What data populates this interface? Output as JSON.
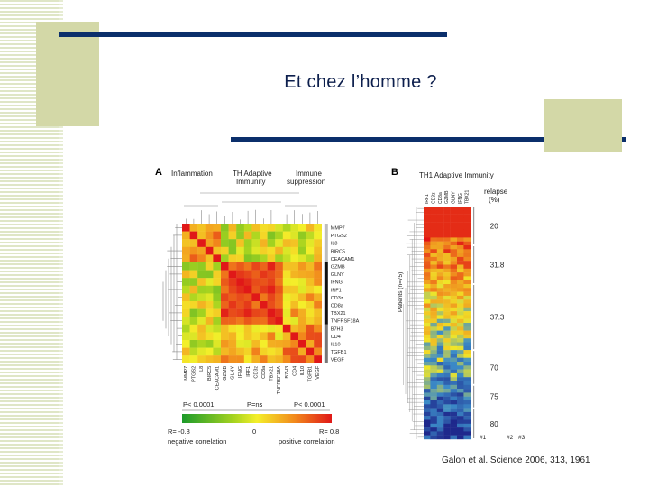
{
  "slide": {
    "title": "Et chez l’homme ?",
    "citation": "Galon et al. Science 2006, 313, 1961"
  },
  "figure_a": {
    "panel_label": "A",
    "groups": [
      "Inflammation",
      "TH Adaptive",
      "Immunity",
      "Immune",
      "suppression"
    ],
    "genes": [
      "MMP7",
      "PTGS2",
      "IL8",
      "BIRC5",
      "CEACAM1",
      "GZMB",
      "GLNY",
      "IFNG",
      "IRF1",
      "CD3z",
      "CD8a",
      "TBX21",
      "TNFRSF18A",
      "B7H3",
      "CD4",
      "IL10",
      "TGFB1",
      "VEGF"
    ],
    "pvals": [
      "P< 0.0001",
      "P=ns",
      "P< 0.0001"
    ],
    "scale_left": "R= -0.8",
    "scale_mid": "0",
    "scale_right": "R= 0.8",
    "neg_label": "negative correlation",
    "pos_label": "positive correlation"
  },
  "figure_b": {
    "panel_label": "B",
    "header": "TH1 Adaptive Immunity",
    "columns": [
      "IRF1",
      "CD3z",
      "CD8a",
      "GZMB",
      "GLNY",
      "IFNG",
      "TBX21"
    ],
    "relapse_label": "relapse",
    "relapse_unit": "(%)",
    "relapse_values": [
      "20",
      "31.8",
      "37.3",
      "70",
      "75",
      "80"
    ],
    "ylabel": "Patients (n=75)",
    "cluster_labels": [
      "#1",
      "#2",
      "#3"
    ]
  },
  "colors": {
    "accent_bar": "#0b2f6b",
    "title": "#0d1f4d",
    "deco_square": "#d3d8a7"
  }
}
